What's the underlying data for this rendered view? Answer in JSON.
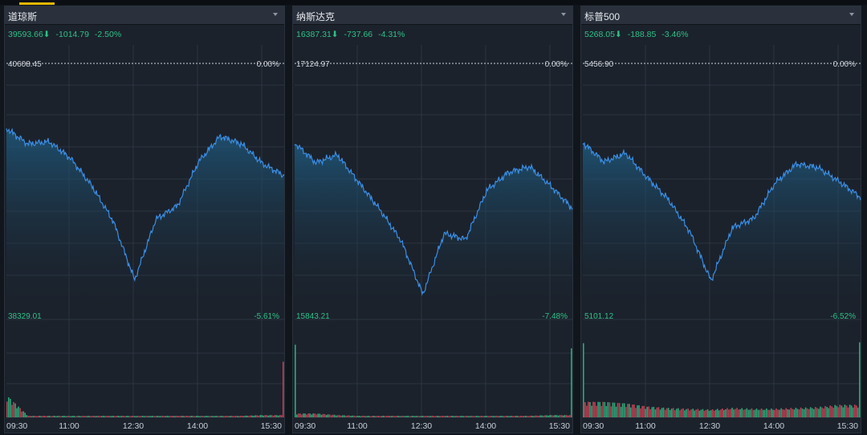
{
  "panels": [
    {
      "title": "道琼斯",
      "quote": {
        "last": "39593.66",
        "arrow": "⬇",
        "change": "-1014.79",
        "pct": "-2.50%"
      },
      "ref": {
        "price": "40608.45",
        "pct": "0.00%"
      },
      "low": {
        "price": "38329.01",
        "pct": "-5.61%"
      }
    },
    {
      "title": "纳斯达克",
      "quote": {
        "last": "16387.31",
        "arrow": "⬇",
        "change": "-737.66",
        "pct": "-4.31%"
      },
      "ref": {
        "price": "17124.97",
        "pct": "0.00%"
      },
      "low": {
        "price": "15843.21",
        "pct": "-7.48%"
      }
    },
    {
      "title": "标普500",
      "quote": {
        "last": "5268.05",
        "arrow": "⬇",
        "change": "-188.85",
        "pct": "-3.46%"
      },
      "ref": {
        "price": "5456.90",
        "pct": "0.00%"
      },
      "low": {
        "price": "5101.12",
        "pct": "-6.52%"
      }
    }
  ],
  "time_ticks": [
    "09:30",
    "11:00",
    "12:30",
    "14:00",
    "15:30"
  ],
  "colors": {
    "up": "#2fc186",
    "down": "#e0455a",
    "line": "#3a8ee6",
    "ref_line": "#d0d4da",
    "grid": "#2b3440"
  },
  "chart_data": [
    {
      "type": "line",
      "title": "道琼斯",
      "x": [
        "09:30",
        "10:00",
        "10:30",
        "11:00",
        "11:30",
        "12:00",
        "12:30",
        "13:00",
        "13:30",
        "14:00",
        "14:30",
        "15:00",
        "15:30",
        "16:00"
      ],
      "values": [
        40020,
        39880,
        39900,
        39750,
        39500,
        39180,
        38650,
        39200,
        39320,
        39720,
        39950,
        39880,
        39700,
        39593.66
      ],
      "ref_value": 40608.45,
      "ylim": [
        38329.01,
        40608.45
      ],
      "volume": [
        0.28,
        0.02,
        0.02,
        0.02,
        0.02,
        0.02,
        0.02,
        0.02,
        0.02,
        0.02,
        0.02,
        0.02,
        0.03,
        0.95
      ]
    },
    {
      "type": "line",
      "title": "纳斯达克",
      "x": [
        "09:30",
        "10:00",
        "10:30",
        "11:00",
        "11:30",
        "12:00",
        "12:30",
        "13:00",
        "13:30",
        "14:00",
        "14:30",
        "15:00",
        "15:30",
        "16:00"
      ],
      "values": [
        16720,
        16620,
        16660,
        16520,
        16380,
        16220,
        15950,
        16260,
        16230,
        16480,
        16570,
        16600,
        16500,
        16387.31
      ],
      "ref_value": 17124.97,
      "ylim": [
        15843.21,
        17124.97
      ],
      "volume": [
        0.95,
        0.05,
        0.03,
        0.02,
        0.02,
        0.02,
        0.02,
        0.02,
        0.02,
        0.02,
        0.02,
        0.02,
        0.03,
        0.92
      ]
    },
    {
      "type": "line",
      "title": "标普500",
      "x": [
        "09:30",
        "10:00",
        "10:30",
        "11:00",
        "11:30",
        "12:00",
        "12:30",
        "13:00",
        "13:30",
        "14:00",
        "14:30",
        "15:00",
        "15:30",
        "16:00"
      ],
      "values": [
        5345,
        5318,
        5330,
        5296,
        5265,
        5220,
        5150,
        5225,
        5238,
        5288,
        5315,
        5310,
        5290,
        5268.05
      ],
      "ref_value": 5456.9,
      "ylim": [
        5101.12,
        5456.9
      ],
      "volume": [
        0.95,
        0.2,
        0.18,
        0.14,
        0.12,
        0.11,
        0.1,
        0.12,
        0.11,
        0.11,
        0.12,
        0.13,
        0.16,
        0.95
      ]
    }
  ]
}
